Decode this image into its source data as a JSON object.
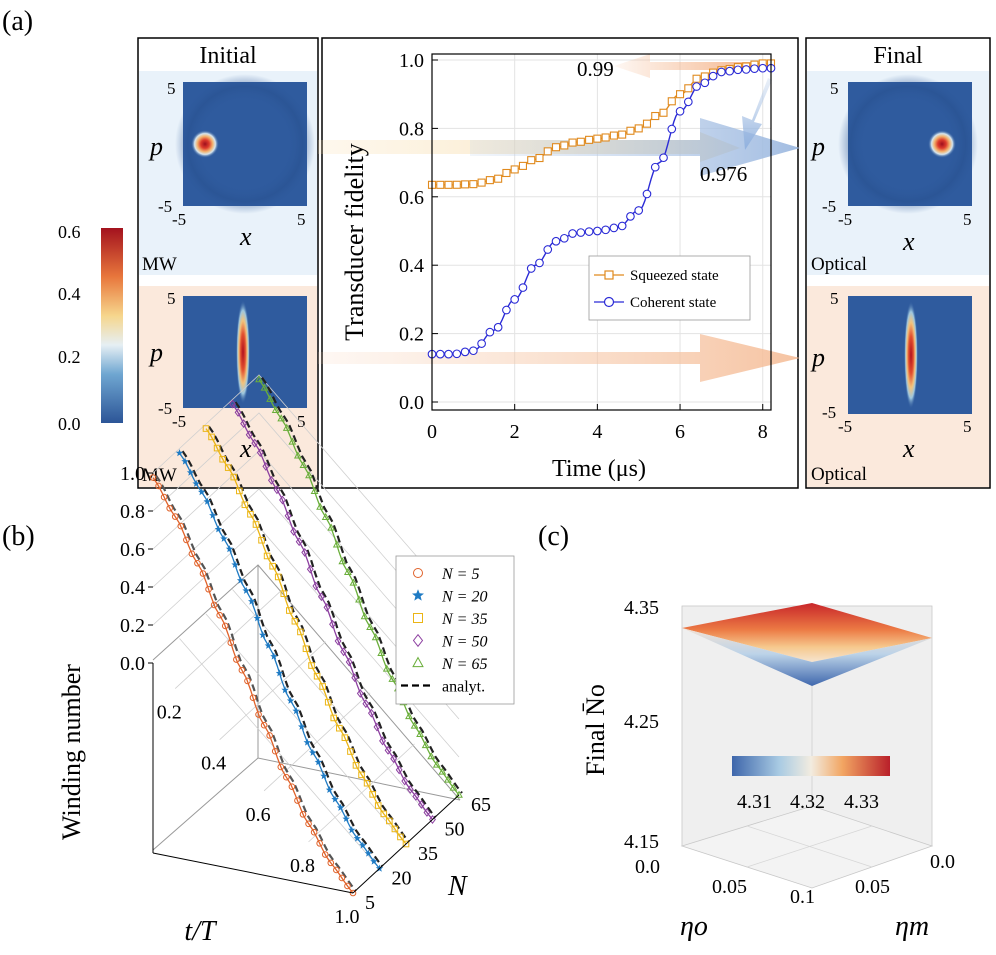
{
  "panel_labels": {
    "a": "(a)",
    "b": "(b)",
    "c": "(c)"
  },
  "colors": {
    "squeezed": "#e08a1e",
    "coherent": "#2b2bd6",
    "label_099": "#c8641e",
    "label_0976": "#1a1ad0",
    "mw_bg": "#e9f2fa",
    "opt_bg": "#fbe9dc",
    "map_bg": "#2f5b9e",
    "n5": "#e0622a",
    "n20": "#1f7bc4",
    "n35": "#ebb515",
    "n50": "#8c3fa0",
    "n65": "#6aae3a"
  },
  "panel_a": {
    "initial_title": "Initial",
    "final_title": "Final",
    "mw_label": "MW",
    "optical_label": "Optical",
    "x_label": "x",
    "p_label": "p",
    "map_ticks": {
      "x_min": "-5",
      "x_max": "5",
      "p_max": "5",
      "p_min": "-5"
    },
    "colorbar_ticks": [
      "0.0",
      "0.2",
      "0.4",
      "0.6"
    ]
  },
  "chart_data": [
    {
      "id": "a-fidelity",
      "type": "line",
      "xlabel": "Time (μs)",
      "ylabel": "Transducer fidelity",
      "xlim": [
        0,
        8.2
      ],
      "ylim": [
        -0.02,
        1.03
      ],
      "xticks": [
        0,
        2,
        4,
        6,
        8
      ],
      "yticks": [
        0.0,
        0.2,
        0.4,
        0.6,
        0.8,
        1.0
      ],
      "grid": true,
      "legend_position": "lower-right",
      "annotations": [
        "0.99",
        "0.976"
      ],
      "series": [
        {
          "name": "Squeezed state",
          "x": [
            0,
            0.5,
            1,
            1.5,
            2,
            2.5,
            3,
            3.5,
            4,
            4.5,
            5,
            5.5,
            6,
            6.5,
            7,
            7.5,
            8,
            8.2
          ],
          "y": [
            0.635,
            0.635,
            0.637,
            0.65,
            0.68,
            0.71,
            0.745,
            0.76,
            0.77,
            0.78,
            0.8,
            0.84,
            0.9,
            0.95,
            0.97,
            0.98,
            0.99,
            0.99
          ]
        },
        {
          "name": "Coherent state",
          "x": [
            0,
            0.5,
            1,
            1.5,
            2,
            2.5,
            3,
            3.5,
            4,
            4.5,
            5,
            5.5,
            6,
            6.5,
            7,
            7.5,
            8,
            8.2
          ],
          "y": [
            0.14,
            0.14,
            0.15,
            0.21,
            0.3,
            0.4,
            0.47,
            0.495,
            0.5,
            0.51,
            0.56,
            0.7,
            0.85,
            0.93,
            0.965,
            0.972,
            0.976,
            0.976
          ]
        }
      ]
    },
    {
      "id": "b-winding",
      "type": "line",
      "xlabel": "t/T",
      "ylabel": "Winding number",
      "zlabel": "N",
      "x_ticks": [
        "0.2",
        "0.4",
        "0.6",
        "0.8",
        "1.0"
      ],
      "y_ticks": [
        "0.0",
        "0.2",
        "0.4",
        "0.6",
        "0.8",
        "1.0"
      ],
      "n_ticks": [
        "5",
        "20",
        "35",
        "50",
        "65"
      ],
      "legend_position": "top-right",
      "series": [
        {
          "name": "N =  5",
          "N": 5,
          "marker": "circle"
        },
        {
          "name": "N = 20",
          "N": 20,
          "marker": "star"
        },
        {
          "name": "N = 35",
          "N": 35,
          "marker": "square"
        },
        {
          "name": "N = 50",
          "N": 50,
          "marker": "diamond"
        },
        {
          "name": "N = 65",
          "N": 65,
          "marker": "triangle"
        },
        {
          "name": "analyt.",
          "style": "dashed"
        }
      ],
      "t": [
        0.0,
        0.1,
        0.2,
        0.3,
        0.4,
        0.5,
        0.6,
        0.7,
        0.8,
        0.9,
        1.0
      ],
      "winding": [
        1.0,
        0.976,
        0.905,
        0.794,
        0.655,
        0.5,
        0.345,
        0.206,
        0.095,
        0.024,
        0.0
      ]
    },
    {
      "id": "c-surface",
      "type": "heatmap",
      "zlabel": "Final N̄o",
      "z_ticks": [
        "4.35",
        "4.25",
        "4.15"
      ],
      "eta_o_ticks": [
        "0.0",
        "0.05",
        "0.1"
      ],
      "eta_m_ticks": [
        "0.0",
        "0.05",
        "0.1"
      ],
      "colorbar_ticks": [
        "4.31",
        "4.32",
        "4.33"
      ],
      "xlabel": "ηo",
      "ylabel": "ηm"
    }
  ]
}
